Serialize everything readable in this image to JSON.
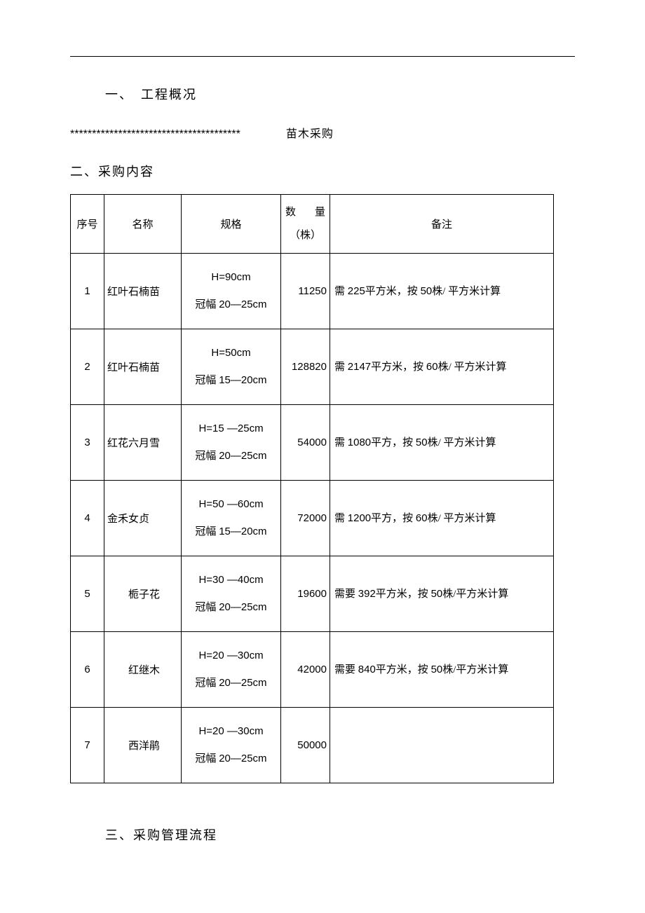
{
  "headings": {
    "section1": "一、　工程概况",
    "section2": "二、采购内容",
    "section3": "三、采购管理流程"
  },
  "project": {
    "stars": "***************************************",
    "label": "苗木采购"
  },
  "table": {
    "columns": {
      "seq": "序号",
      "name": "名称",
      "spec": "规格",
      "qty_top_left": "数",
      "qty_top_right": "量",
      "qty_bottom": "（株）",
      "note": "备注"
    },
    "col_widths": {
      "seq": 48,
      "name": 110,
      "spec": 142,
      "qty": 70
    },
    "rows": [
      {
        "seq": "1",
        "name": "红叶石楠苗",
        "name_align": "left",
        "spec_l1": "H=90cm",
        "spec_l2_prefix": "冠幅 ",
        "spec_l2_val": "20—25cm",
        "qty": "11250",
        "note_p1": "需 ",
        "note_v1": "225",
        "note_p2": "平方米，按 ",
        "note_v2": "50",
        "note_p3": "株/ 平方米计算"
      },
      {
        "seq": "2",
        "name": "红叶石楠苗",
        "name_align": "left",
        "spec_l1": "H=50cm",
        "spec_l2_prefix": "冠幅 ",
        "spec_l2_val": "15—20cm",
        "qty": "128820",
        "note_p1": "需 ",
        "note_v1": "2147",
        "note_p2": "平方米，按 ",
        "note_v2": "60",
        "note_p3": "株/ 平方米计算"
      },
      {
        "seq": "3",
        "name": "红花六月雪",
        "name_align": "left",
        "spec_l1": "H=15 —25cm",
        "spec_l2_prefix": "冠幅 ",
        "spec_l2_val": "20—25cm",
        "qty": "54000",
        "note_p1": "需 ",
        "note_v1": "1080",
        "note_p2": "平方，按 ",
        "note_v2": "50",
        "note_p3": "株/ 平方米计算"
      },
      {
        "seq": "4",
        "name": "金禾女贞",
        "name_align": "left",
        "spec_l1": "H=50 —60cm",
        "spec_l2_prefix": "冠幅 ",
        "spec_l2_val": "15—20cm",
        "qty": "72000",
        "note_p1": "需 ",
        "note_v1": "1200",
        "note_p2": "平方，按 ",
        "note_v2": "60",
        "note_p3": "株/ 平方米计算"
      },
      {
        "seq": "5",
        "name": "栀子花",
        "name_align": "center",
        "spec_l1": "H=30 —40cm",
        "spec_l2_prefix": "冠幅 ",
        "spec_l2_val": "20—25cm",
        "qty": "19600",
        "note_p1": "需要 ",
        "note_v1": "392",
        "note_p2": "平方米，按 ",
        "note_v2": "50",
        "note_p3": "株/平方米计算"
      },
      {
        "seq": "6",
        "name": "红继木",
        "name_align": "center",
        "spec_l1": "H=20 —30cm",
        "spec_l2_prefix": "冠幅 ",
        "spec_l2_val": "20—25cm",
        "qty": "42000",
        "note_p1": "需要 ",
        "note_v1": "840",
        "note_p2": "平方米，按 ",
        "note_v2": "50",
        "note_p3": "株/平方米计算"
      },
      {
        "seq": "7",
        "name": "西洋鹃",
        "name_align": "center",
        "spec_l1": "H=20 —30cm",
        "spec_l2_prefix": "冠幅 ",
        "spec_l2_val": "20—25cm",
        "qty": "50000",
        "note_p1": "",
        "note_v1": "",
        "note_p2": "",
        "note_v2": "",
        "note_p3": ""
      }
    ]
  },
  "style": {
    "body_width": 920,
    "table_border_color": "#000000",
    "font_color": "#000000",
    "background_color": "#ffffff",
    "heading_fontsize": 18,
    "body_fontsize": 15
  }
}
